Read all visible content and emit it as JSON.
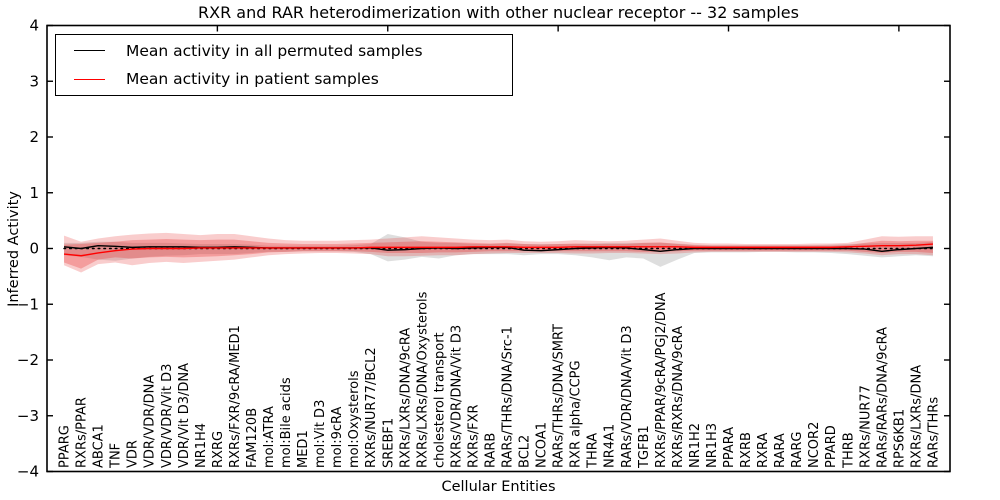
{
  "figure": {
    "title": "RXR and RAR heterodimerization with other nuclear receptor -- 32 samples",
    "xlabel": "Cellular Entities",
    "ylabel": "Inferred Activity"
  },
  "legend": {
    "items": [
      {
        "label": "Mean activity in all permuted samples",
        "color": "#000000"
      },
      {
        "label": "Mean activity in patient samples",
        "color": "#ff0000"
      }
    ]
  },
  "chart_data": {
    "type": "line",
    "title": "RXR and RAR heterodimerization with other nuclear receptor -- 32 samples",
    "xlabel": "Cellular Entities",
    "ylabel": "Inferred Activity",
    "ylim": [
      -4,
      4
    ],
    "x_range": [
      0,
      53
    ],
    "yticks": [
      4,
      3,
      2,
      1,
      0,
      -1,
      -2,
      -3,
      -4
    ],
    "ytick_labels": [
      "4",
      "3",
      "2",
      "1",
      "0",
      "−1",
      "−2",
      "−3",
      "−4"
    ],
    "xticks_numeric": [
      10,
      20,
      30,
      40,
      50
    ],
    "grid": false,
    "legend_position": "upper left",
    "zero_line": {
      "style": "dotted",
      "color": "#000000",
      "y": 0
    },
    "categories": [
      "PPARG",
      "RXRs/PPAR",
      "ABCA1",
      "TNF",
      "VDR",
      "VDR/VDR/DNA",
      "VDR/VDR/Vit D3",
      "VDR/Vit D3/DNA",
      "NR1H4",
      "RXRG",
      "RXRs/FXR/9cRA/MED1",
      "FAM120B",
      "mol:ATRA",
      "mol:Bile acids",
      "MED1",
      "mol:Vit D3",
      "mol:9cRA",
      "mol:Oxysterols",
      "RXRs/NUR77/BCL2",
      "SREBF1",
      "RXRs/LXRs/DNA/9cRA",
      "RXRs/LXRs/DNA/Oxysterols",
      "cholesterol transport",
      "RXRs/VDR/DNA/Vit D3",
      "RXRs/FXR",
      "RARB",
      "RARs/THRs/DNA/Src-1",
      "BCL2",
      "NCOA1",
      "RARs/THRs/DNA/SMRT",
      "RXR alpha/CCPG",
      "THRA",
      "NR4A1",
      "RARs/VDR/DNA/Vit D3",
      "TGFB1",
      "RXRs/PPAR/9cRA/PGJ2/DNA",
      "RXRs/RXRs/DNA/9cRA",
      "NR1H2",
      "NR1H3",
      "PPARA",
      "RXRB",
      "RXRA",
      "RARA",
      "RARG",
      "NCOR2",
      "PPARD",
      "THRB",
      "RXRs/NUR77",
      "RARs/RARs/DNA/9cRA",
      "RPS6KB1",
      "RXRs/LXRs/DNA",
      "RARs/THRs"
    ],
    "series": [
      {
        "name": "Mean activity in all permuted samples",
        "color": "#000000",
        "values": [
          0.03,
          0.0,
          0.05,
          0.04,
          0.02,
          0.03,
          0.03,
          0.03,
          0.02,
          0.02,
          0.03,
          0.02,
          0.01,
          0.01,
          0.01,
          0.01,
          0.01,
          0.01,
          0.01,
          -0.03,
          -0.02,
          0.0,
          0.01,
          0.0,
          0.01,
          0.02,
          0.02,
          -0.03,
          -0.04,
          -0.02,
          0.0,
          0.01,
          0.02,
          0.01,
          -0.02,
          -0.05,
          -0.02,
          0.0,
          0.0,
          0.0,
          0.0,
          0.0,
          0.0,
          0.0,
          0.0,
          0.0,
          0.0,
          -0.01,
          -0.05,
          -0.02,
          0.0,
          0.02
        ]
      },
      {
        "name": "Mean activity in patient samples",
        "color": "#ff0000",
        "values": [
          -0.1,
          -0.13,
          -0.08,
          -0.04,
          -0.01,
          0.0,
          0.0,
          0.0,
          0.01,
          0.01,
          0.01,
          0.01,
          0.01,
          0.01,
          0.01,
          0.01,
          0.01,
          0.01,
          0.02,
          0.02,
          0.02,
          0.02,
          0.02,
          0.02,
          0.03,
          0.03,
          0.03,
          0.02,
          0.02,
          0.02,
          0.03,
          0.03,
          0.03,
          0.03,
          0.03,
          0.03,
          0.03,
          0.02,
          0.02,
          0.02,
          0.02,
          0.02,
          0.02,
          0.02,
          0.02,
          0.02,
          0.03,
          0.04,
          0.05,
          0.05,
          0.06,
          0.08
        ]
      }
    ],
    "bands": [
      {
        "name": "permuted-range",
        "color": "rgba(0,0,0,0.13)",
        "low": [
          -0.12,
          -0.15,
          -0.2,
          -0.22,
          -0.18,
          -0.15,
          -0.13,
          -0.12,
          -0.1,
          -0.1,
          -0.1,
          -0.08,
          -0.06,
          -0.06,
          -0.05,
          -0.05,
          -0.05,
          -0.06,
          -0.1,
          -0.23,
          -0.2,
          -0.15,
          -0.18,
          -0.12,
          -0.1,
          -0.1,
          -0.1,
          -0.12,
          -0.1,
          -0.1,
          -0.12,
          -0.16,
          -0.21,
          -0.16,
          -0.18,
          -0.33,
          -0.2,
          -0.08,
          -0.07,
          -0.07,
          -0.07,
          -0.06,
          -0.06,
          -0.07,
          -0.07,
          -0.08,
          -0.1,
          -0.13,
          -0.16,
          -0.14,
          -0.12,
          -0.14
        ],
        "high": [
          0.1,
          0.1,
          0.12,
          0.12,
          0.1,
          0.1,
          0.1,
          0.09,
          0.08,
          0.08,
          0.08,
          0.07,
          0.05,
          0.05,
          0.05,
          0.05,
          0.05,
          0.06,
          0.08,
          0.26,
          0.2,
          0.12,
          0.1,
          0.1,
          0.08,
          0.08,
          0.09,
          0.08,
          0.08,
          0.08,
          0.08,
          0.09,
          0.1,
          0.1,
          0.1,
          0.1,
          0.09,
          0.07,
          0.06,
          0.06,
          0.06,
          0.06,
          0.06,
          0.06,
          0.06,
          0.07,
          0.08,
          0.09,
          0.1,
          0.1,
          0.1,
          0.12
        ]
      },
      {
        "name": "patient-outer",
        "color": "rgba(231,47,47,0.24)",
        "low": [
          -0.3,
          -0.43,
          -0.28,
          -0.25,
          -0.3,
          -0.26,
          -0.24,
          -0.26,
          -0.24,
          -0.22,
          -0.2,
          -0.16,
          -0.12,
          -0.1,
          -0.09,
          -0.08,
          -0.08,
          -0.09,
          -0.1,
          -0.14,
          -0.14,
          -0.13,
          -0.12,
          -0.12,
          -0.1,
          -0.09,
          -0.08,
          -0.08,
          -0.08,
          -0.08,
          -0.09,
          -0.09,
          -0.08,
          -0.08,
          -0.09,
          -0.1,
          -0.09,
          -0.07,
          -0.06,
          -0.06,
          -0.06,
          -0.06,
          -0.06,
          -0.06,
          -0.06,
          -0.06,
          -0.07,
          -0.09,
          -0.12,
          -0.1,
          -0.1,
          -0.12
        ],
        "high": [
          0.23,
          0.12,
          0.18,
          0.22,
          0.25,
          0.27,
          0.28,
          0.26,
          0.24,
          0.26,
          0.26,
          0.22,
          0.18,
          0.15,
          0.14,
          0.14,
          0.14,
          0.15,
          0.16,
          0.18,
          0.2,
          0.22,
          0.2,
          0.18,
          0.16,
          0.15,
          0.16,
          0.13,
          0.12,
          0.13,
          0.15,
          0.14,
          0.13,
          0.14,
          0.16,
          0.18,
          0.14,
          0.1,
          0.09,
          0.09,
          0.08,
          0.08,
          0.08,
          0.08,
          0.09,
          0.09,
          0.1,
          0.16,
          0.22,
          0.21,
          0.22,
          0.22
        ]
      },
      {
        "name": "patient-inner",
        "color": "rgba(231,47,47,0.30)",
        "low": [
          -0.25,
          -0.36,
          -0.2,
          -0.16,
          -0.18,
          -0.16,
          -0.15,
          -0.16,
          -0.15,
          -0.14,
          -0.12,
          -0.1,
          -0.07,
          -0.06,
          -0.05,
          -0.05,
          -0.05,
          -0.05,
          -0.06,
          -0.08,
          -0.08,
          -0.08,
          -0.07,
          -0.07,
          -0.06,
          -0.05,
          -0.05,
          -0.05,
          -0.05,
          -0.05,
          -0.05,
          -0.05,
          -0.05,
          -0.05,
          -0.06,
          -0.06,
          -0.05,
          -0.04,
          -0.04,
          -0.04,
          -0.04,
          -0.04,
          -0.04,
          -0.04,
          -0.04,
          -0.04,
          -0.04,
          -0.06,
          -0.08,
          -0.06,
          -0.06,
          -0.08
        ],
        "high": [
          0.07,
          0.08,
          0.1,
          0.12,
          0.15,
          0.16,
          0.17,
          0.16,
          0.15,
          0.16,
          0.16,
          0.13,
          0.1,
          0.09,
          0.08,
          0.08,
          0.08,
          0.09,
          0.1,
          0.11,
          0.12,
          0.13,
          0.12,
          0.11,
          0.1,
          0.09,
          0.1,
          0.08,
          0.07,
          0.08,
          0.09,
          0.08,
          0.08,
          0.08,
          0.1,
          0.11,
          0.08,
          0.06,
          0.05,
          0.05,
          0.05,
          0.05,
          0.05,
          0.05,
          0.05,
          0.05,
          0.06,
          0.1,
          0.14,
          0.13,
          0.14,
          0.14
        ]
      }
    ]
  }
}
